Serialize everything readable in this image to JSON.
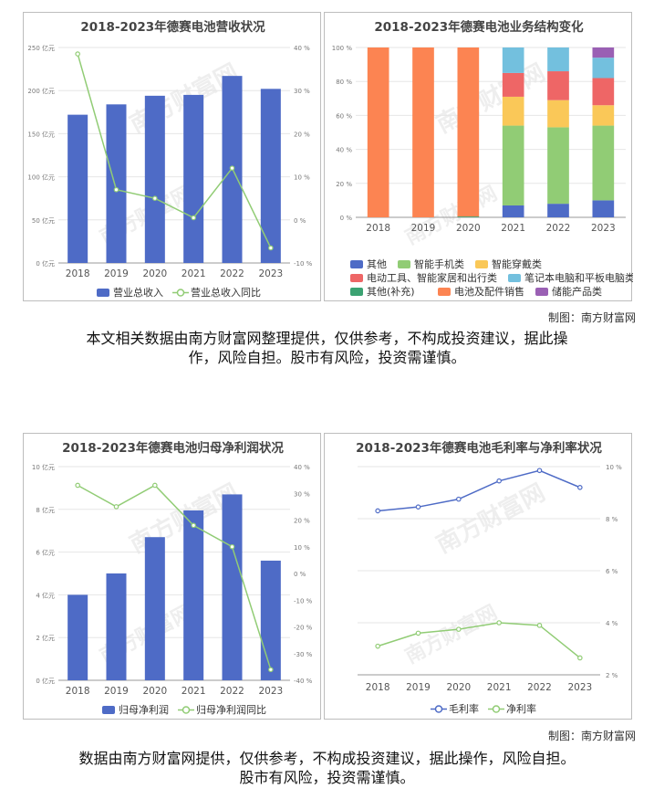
{
  "credit_top": "制图：南方财富网",
  "credit_bottom": "制图：南方财富网",
  "disclaimer_top": [
    "本文相关数据由南方财富网整理提供，仅供参考，不构成投资建议，据此操",
    "作，风险自担。股市有风险，投资需谨慎。"
  ],
  "disclaimer_bottom": [
    "数据由南方财富网提供，仅供参考，不构成投资建议，据此操作，风险自担。",
    "股市有风险，投资需谨慎。"
  ],
  "watermark": "南方财富网",
  "colors": {
    "blue": "#4e6bc6",
    "green": "#91cc75",
    "orange": "#ee7d4d"
  },
  "chart_data": [
    {
      "type": "bar",
      "title": "2018-2023年德赛电池营收状况",
      "categories": [
        "2018",
        "2019",
        "2020",
        "2021",
        "2022",
        "2023"
      ],
      "series": [
        {
          "name": "营业总收入",
          "type": "bar",
          "axis": "left",
          "values": [
            172,
            184,
            194,
            195,
            217,
            202
          ]
        },
        {
          "name": "营业总收入同比",
          "type": "line",
          "axis": "right",
          "values": [
            38.5,
            7,
            5,
            0.5,
            12,
            -6.5
          ]
        }
      ],
      "y_left": {
        "min": 0,
        "max": 250,
        "step": 50,
        "ticks": [
          "0 亿元",
          "50 亿元",
          "100 亿元",
          "150 亿元",
          "200 亿元",
          "250 亿元"
        ]
      },
      "y_right": {
        "min": -10,
        "max": 40,
        "step": 10,
        "ticks": [
          "-10 %",
          "0 %",
          "10 %",
          "20 %",
          "30 %",
          "40 %"
        ]
      },
      "legend": "bottom"
    },
    {
      "type": "bar",
      "stacked": true,
      "title": "2018-2023年德赛电池业务结构变化",
      "categories": [
        "2018",
        "2019",
        "2020",
        "2021",
        "2022",
        "2023"
      ],
      "series": [
        {
          "name": "其他",
          "color": "#4e6bc6",
          "values": [
            0,
            0,
            0,
            7,
            8,
            10
          ]
        },
        {
          "name": "智能手机类",
          "color": "#91cc75",
          "values": [
            0,
            0,
            0,
            47,
            45,
            44
          ]
        },
        {
          "name": "智能穿戴类",
          "color": "#fac858",
          "values": [
            0,
            0,
            0,
            17,
            16,
            12
          ]
        },
        {
          "name": "电动工具、智能家居和出行类",
          "color": "#ee6666",
          "values": [
            0,
            0,
            0,
            14,
            17,
            16
          ]
        },
        {
          "name": "笔记本电脑和平板电脑类",
          "color": "#73c0de",
          "values": [
            0,
            0,
            0,
            15,
            14,
            12
          ]
        },
        {
          "name": "其他(补充)",
          "color": "#3ba272",
          "values": [
            0,
            0,
            0.5,
            0,
            0,
            0
          ]
        },
        {
          "name": "电池及配件销售",
          "color": "#fc8452",
          "values": [
            100,
            100,
            99.5,
            0,
            0,
            0
          ]
        },
        {
          "name": "储能产品类",
          "color": "#9a60b4",
          "values": [
            0,
            0,
            0,
            0,
            0,
            6
          ]
        }
      ],
      "y": {
        "min": 0,
        "max": 100,
        "step": 20,
        "ticks": [
          "0 %",
          "20 %",
          "40 %",
          "60 %",
          "80 %",
          "100 %"
        ]
      },
      "legend": "bottom"
    },
    {
      "type": "bar",
      "title": "2018-2023年德赛电池归母净利润状况",
      "categories": [
        "2018",
        "2019",
        "2020",
        "2021",
        "2022",
        "2023"
      ],
      "series": [
        {
          "name": "归母净利润",
          "type": "bar",
          "axis": "left",
          "values": [
            4.0,
            5.0,
            6.7,
            7.95,
            8.7,
            5.6
          ]
        },
        {
          "name": "归母净利润同比",
          "type": "line",
          "axis": "right",
          "values": [
            33,
            25,
            33,
            18,
            10,
            -36
          ]
        }
      ],
      "y_left": {
        "min": 0,
        "max": 10,
        "step": 2,
        "ticks": [
          "0 亿元",
          "2 亿元",
          "4 亿元",
          "6 亿元",
          "8 亿元",
          "10 亿元"
        ]
      },
      "y_right": {
        "min": -40,
        "max": 40,
        "step": 10,
        "ticks": [
          "-40 %",
          "-30 %",
          "-20 %",
          "-10 %",
          "0 %",
          "10 %",
          "20 %",
          "30 %",
          "40 %"
        ]
      },
      "legend": "bottom"
    },
    {
      "type": "line",
      "title": "2018-2023年德赛电池毛利率与净利率状况",
      "categories": [
        "2018",
        "2019",
        "2020",
        "2021",
        "2022",
        "2023"
      ],
      "series": [
        {
          "name": "毛利率",
          "color": "#4e6bc6",
          "values": [
            8.3,
            8.45,
            8.75,
            9.45,
            9.85,
            9.2
          ]
        },
        {
          "name": "净利率",
          "color": "#91cc75",
          "values": [
            3.1,
            3.6,
            3.75,
            4.0,
            3.9,
            2.65
          ]
        }
      ],
      "y_right": {
        "min": 2,
        "max": 10,
        "step": 2,
        "ticks": [
          "2 %",
          "4 %",
          "6 %",
          "8 %",
          "10 %"
        ]
      },
      "legend": "bottom"
    }
  ]
}
